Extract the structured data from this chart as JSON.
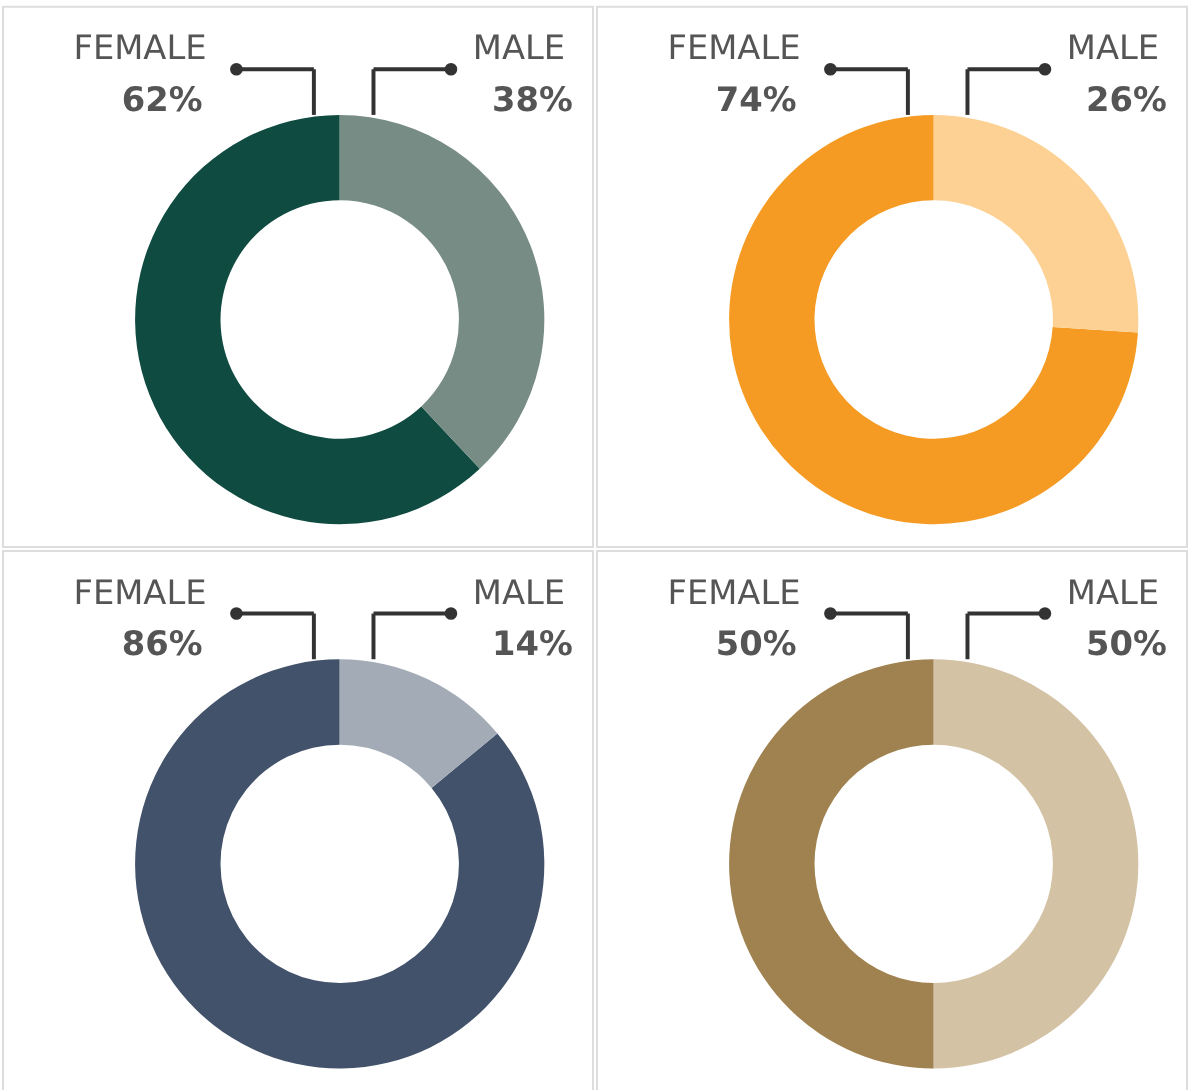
{
  "chart_data": [
    {
      "type": "donut",
      "categories": [
        "FEMALE",
        "MALE"
      ],
      "values": [
        62,
        38
      ],
      "colors": [
        "#0f4b40",
        "#778c84"
      ],
      "value_labels": [
        "62%",
        "38%"
      ]
    },
    {
      "type": "donut",
      "categories": [
        "FEMALE",
        "MALE"
      ],
      "values": [
        74,
        26
      ],
      "colors": [
        "#f59b23",
        "#fdd194"
      ],
      "value_labels": [
        "74%",
        "26%"
      ]
    },
    {
      "type": "donut",
      "categories": [
        "FEMALE",
        "MALE"
      ],
      "values": [
        86,
        14
      ],
      "colors": [
        "#42526a",
        "#a3abb7"
      ],
      "value_labels": [
        "86%",
        "14%"
      ]
    },
    {
      "type": "donut",
      "categories": [
        "FEMALE",
        "MALE"
      ],
      "values": [
        50,
        50
      ],
      "colors": [
        "#a08250",
        "#d4c2a5"
      ],
      "value_labels": [
        "50%",
        "50%"
      ]
    }
  ]
}
